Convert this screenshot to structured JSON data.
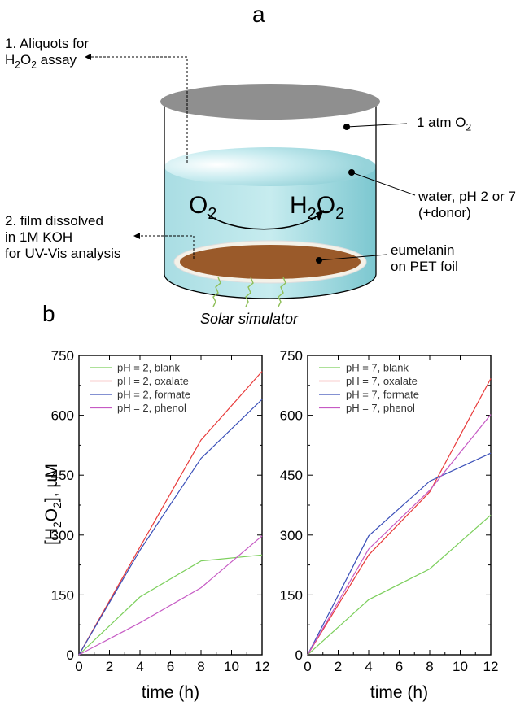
{
  "panel_a": {
    "letter": "a",
    "note1": {
      "line1": "1. Aliquots for",
      "line2_pre": "H",
      "line2_sub1": "2",
      "line2_mid": "O",
      "line2_sub2": "2",
      "line2_post": " assay"
    },
    "atm": {
      "pre": "1 atm O",
      "sub": "2"
    },
    "water": {
      "line1": "water, pH 2 or 7",
      "line2": "(+donor)"
    },
    "note2": {
      "line1": "2. film dissolved",
      "line2": "in 1M KOH",
      "line3": "for UV-Vis analysis"
    },
    "eumelanin": {
      "line1": "eumelanin",
      "line2": "on PET foil"
    },
    "o2": {
      "pre": "O",
      "sub": "2"
    },
    "h2o2": {
      "pre1": "H",
      "sub1": "2",
      "pre2": "O",
      "sub2": "2"
    },
    "solar": "Solar simulator"
  },
  "panel_b": {
    "letter": "b"
  },
  "chart_data": [
    {
      "type": "line",
      "xlabel": "time (h)",
      "ylabel": "[H2O2], µM",
      "xlim": [
        0,
        12
      ],
      "ylim": [
        0,
        750
      ],
      "xticks": [
        0,
        2,
        4,
        6,
        8,
        10,
        12
      ],
      "yticks": [
        0,
        150,
        300,
        450,
        600,
        750
      ],
      "legend_position": "top-left",
      "series": [
        {
          "name": "pH = 2, blank",
          "color": "#7ccf5c",
          "x": [
            0,
            4,
            8,
            12
          ],
          "y": [
            0,
            145,
            235,
            250
          ]
        },
        {
          "name": "pH = 2, oxalate",
          "color": "#e83a3a",
          "x": [
            0,
            4,
            8,
            12
          ],
          "y": [
            0,
            270,
            538,
            710
          ]
        },
        {
          "name": "pH = 2, formate",
          "color": "#3a4fb8",
          "x": [
            0,
            4,
            8,
            12
          ],
          "y": [
            0,
            262,
            492,
            640
          ]
        },
        {
          "name": "pH = 2, phenol",
          "color": "#c65ac4",
          "x": [
            0,
            4,
            8,
            12
          ],
          "y": [
            0,
            80,
            168,
            298
          ]
        }
      ]
    },
    {
      "type": "line",
      "xlabel": "time (h)",
      "xlim": [
        0,
        12
      ],
      "ylim": [
        0,
        750
      ],
      "xticks": [
        0,
        2,
        4,
        6,
        8,
        10,
        12
      ],
      "yticks": [
        0,
        150,
        300,
        450,
        600,
        750
      ],
      "legend_position": "top-left",
      "series": [
        {
          "name": "pH = 7, blank",
          "color": "#7ccf5c",
          "x": [
            0,
            4,
            8,
            12
          ],
          "y": [
            0,
            138,
            215,
            350
          ]
        },
        {
          "name": "pH = 7, oxalate",
          "color": "#e83a3a",
          "x": [
            0,
            4,
            8,
            12
          ],
          "y": [
            0,
            250,
            408,
            692
          ]
        },
        {
          "name": "pH = 7, formate",
          "color": "#3a4fb8",
          "x": [
            0,
            4,
            8,
            12
          ],
          "y": [
            0,
            298,
            435,
            505
          ]
        },
        {
          "name": "pH = 7, phenol",
          "color": "#c65ac4",
          "x": [
            0,
            4,
            8,
            12
          ],
          "y": [
            0,
            265,
            412,
            602
          ]
        }
      ]
    }
  ]
}
